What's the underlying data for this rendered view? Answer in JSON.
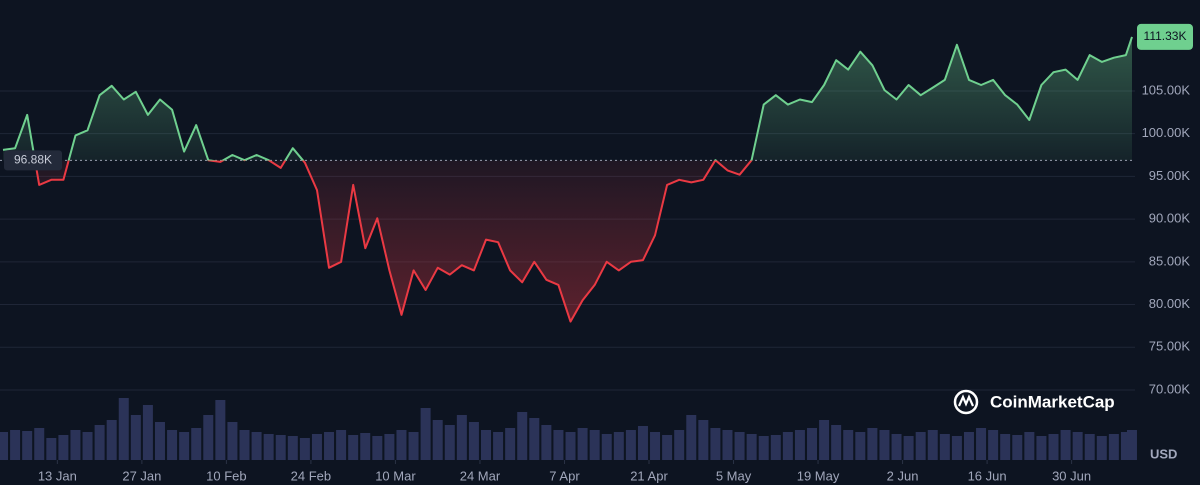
{
  "chart_data": {
    "type": "line",
    "x": [
      4,
      6,
      8,
      10,
      12,
      14,
      16,
      18,
      20,
      22,
      24,
      26,
      28,
      30,
      32,
      34,
      36,
      38,
      40,
      42,
      44,
      46,
      48,
      50,
      52,
      54,
      56,
      58,
      60,
      62,
      64,
      66,
      68,
      70,
      72,
      74,
      76,
      78,
      80,
      82,
      84,
      86,
      88,
      90,
      92,
      94,
      96,
      98,
      100,
      102,
      104,
      106,
      108,
      110,
      112,
      114,
      116,
      118,
      120,
      122,
      124,
      126,
      128,
      130,
      132,
      134,
      136,
      138,
      140,
      142,
      144,
      146,
      148,
      150,
      152,
      154,
      156,
      158,
      160,
      162,
      164,
      166,
      168,
      170,
      172,
      174,
      176,
      178,
      180,
      182,
      184,
      186,
      188,
      190,
      191
    ],
    "values": [
      98100,
      98300,
      102200,
      94000,
      94600,
      94600,
      99800,
      100400,
      104500,
      105600,
      104000,
      104900,
      102200,
      104000,
      102800,
      97900,
      101000,
      96900,
      96700,
      97500,
      96900,
      97500,
      96900,
      96000,
      98300,
      96600,
      93400,
      84300,
      85000,
      94000,
      86600,
      90100,
      84000,
      78800,
      84000,
      81700,
      84300,
      83500,
      84600,
      84000,
      87600,
      87300,
      84000,
      82600,
      85000,
      82900,
      82300,
      78000,
      80500,
      82300,
      85000,
      84000,
      85000,
      85200,
      88100,
      94000,
      94600,
      94300,
      94600,
      96900,
      95700,
      95200,
      96900,
      103400,
      104500,
      103400,
      104000,
      103700,
      105700,
      108600,
      107500,
      109600,
      108000,
      105100,
      104000,
      105700,
      104500,
      105400,
      106300,
      110400,
      106300,
      105700,
      106300,
      104500,
      103400,
      101600,
      105700,
      107200,
      107500,
      106300,
      109200,
      108400,
      108900,
      109200,
      111330
    ],
    "last_label": "111.33K",
    "baseline": 96880,
    "baseline_label": "96.88K",
    "up_color": "#6fd08f",
    "down_color": "#ea3943",
    "volume": {
      "color": "#2b3358",
      "values": [
        28,
        30,
        29,
        32,
        22,
        25,
        30,
        28,
        35,
        40,
        62,
        45,
        55,
        38,
        30,
        28,
        32,
        45,
        60,
        38,
        30,
        28,
        26,
        25,
        24,
        22,
        26,
        28,
        30,
        25,
        27,
        24,
        26,
        30,
        28,
        52,
        40,
        35,
        45,
        38,
        30,
        28,
        32,
        48,
        42,
        35,
        30,
        28,
        32,
        30,
        26,
        28,
        30,
        34,
        28,
        25,
        30,
        45,
        40,
        32,
        30,
        28,
        26,
        24,
        25,
        28,
        30,
        32,
        40,
        35,
        30,
        28,
        32,
        30,
        26,
        24,
        28,
        30,
        26,
        24,
        28,
        32,
        30,
        26,
        25,
        28,
        24,
        26,
        30,
        28,
        26,
        24,
        26,
        28,
        30
      ]
    },
    "y2lim": [
      0,
      100
    ],
    "xlim": [
      3.5,
      191.5
    ],
    "xticks": [
      {
        "value": 13,
        "label": "13 Jan"
      },
      {
        "value": 27,
        "label": "27 Jan"
      },
      {
        "value": 41,
        "label": "10 Feb"
      },
      {
        "value": 55,
        "label": "24 Feb"
      },
      {
        "value": 69,
        "label": "10 Mar"
      },
      {
        "value": 83,
        "label": "24 Mar"
      },
      {
        "value": 97,
        "label": "7 Apr"
      },
      {
        "value": 111,
        "label": "21 Apr"
      },
      {
        "value": 125,
        "label": "5 May"
      },
      {
        "value": 139,
        "label": "19 May"
      },
      {
        "value": 153,
        "label": "2 Jun"
      },
      {
        "value": 167,
        "label": "16 Jun"
      },
      {
        "value": 181,
        "label": "30 Jun"
      }
    ],
    "ylim": [
      61800,
      115650
    ],
    "yticks": [
      {
        "value": 70000,
        "label": "70.00K"
      },
      {
        "value": 75000,
        "label": "75.00K"
      },
      {
        "value": 80000,
        "label": "80.00K"
      },
      {
        "value": 85000,
        "label": "85.00K"
      },
      {
        "value": 90000,
        "label": "90.00K"
      },
      {
        "value": 95000,
        "label": "95.00K"
      },
      {
        "value": 100000,
        "label": "100.00K"
      },
      {
        "value": 105000,
        "label": "105.00K"
      }
    ],
    "grid": true,
    "currency": "USD",
    "watermark": "CoinMarketCap"
  }
}
